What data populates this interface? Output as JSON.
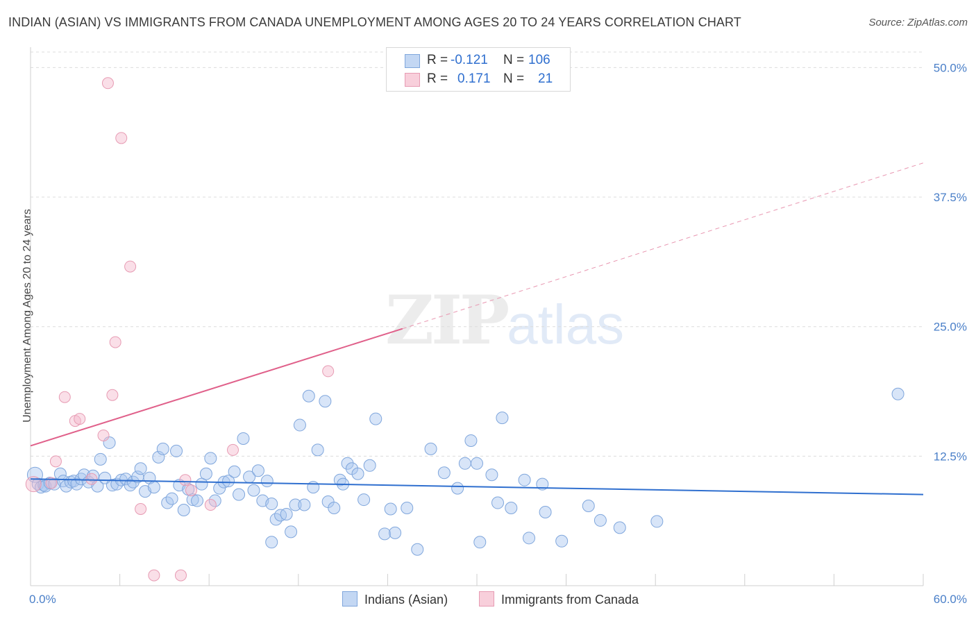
{
  "title": "INDIAN (ASIAN) VS IMMIGRANTS FROM CANADA UNEMPLOYMENT AMONG AGES 20 TO 24 YEARS CORRELATION CHART",
  "source": "Source: ZipAtlas.com",
  "watermark": {
    "zip": "ZIP",
    "atlas": "atlas"
  },
  "colors": {
    "blue": "#a8c6ef",
    "blue_line": "#2f6fcf",
    "pink": "#f4b8cb",
    "pink_line": "#e0608a"
  },
  "stats": {
    "rows": [
      {
        "r_label": "R =",
        "r": "-0.121",
        "n_label": "N =",
        "n": "106"
      },
      {
        "r_label": "R =",
        "r": "0.171",
        "n_label": "N =",
        "n": "21"
      }
    ]
  },
  "chart_data": {
    "type": "scatter",
    "ylabel": "Unemployment Among Ages 20 to 24 years",
    "x_ticks": [
      "0.0%",
      "60.0%"
    ],
    "y_ticks": [
      "12.5%",
      "25.0%",
      "37.5%",
      "50.0%"
    ],
    "xlim": [
      0,
      60
    ],
    "ylim": [
      0,
      51.5
    ],
    "grid": true,
    "legend_position": "bottom-center",
    "series": [
      {
        "name": "Indians (Asian)",
        "trend": {
          "x": [
            0,
            60
          ],
          "y": [
            10.3,
            8.8
          ],
          "dashed_extension": false
        },
        "points": [
          [
            0.3,
            10.7
          ],
          [
            0.5,
            9.8
          ],
          [
            0.7,
            9.5
          ],
          [
            0.9,
            9.7
          ],
          [
            1.0,
            9.6
          ],
          [
            1.3,
            9.9
          ],
          [
            1.6,
            9.8
          ],
          [
            2.0,
            10.8
          ],
          [
            2.2,
            10.1
          ],
          [
            2.4,
            9.6
          ],
          [
            2.7,
            10.0
          ],
          [
            2.9,
            10.1
          ],
          [
            3.1,
            9.8
          ],
          [
            3.4,
            10.3
          ],
          [
            3.6,
            10.7
          ],
          [
            3.9,
            10.0
          ],
          [
            4.2,
            10.6
          ],
          [
            4.5,
            9.6
          ],
          [
            4.7,
            12.2
          ],
          [
            5.0,
            10.4
          ],
          [
            5.3,
            13.8
          ],
          [
            5.5,
            9.7
          ],
          [
            5.8,
            9.8
          ],
          [
            6.1,
            10.2
          ],
          [
            6.4,
            10.3
          ],
          [
            6.7,
            9.7
          ],
          [
            6.9,
            10.0
          ],
          [
            7.2,
            10.5
          ],
          [
            7.4,
            11.3
          ],
          [
            7.7,
            9.1
          ],
          [
            8.0,
            10.4
          ],
          [
            8.3,
            9.5
          ],
          [
            8.6,
            12.4
          ],
          [
            8.9,
            13.2
          ],
          [
            9.2,
            8.0
          ],
          [
            9.5,
            8.4
          ],
          [
            9.8,
            13.0
          ],
          [
            10.0,
            9.7
          ],
          [
            10.3,
            7.3
          ],
          [
            10.6,
            9.3
          ],
          [
            10.9,
            8.3
          ],
          [
            11.2,
            8.2
          ],
          [
            11.5,
            9.8
          ],
          [
            11.8,
            10.8
          ],
          [
            12.1,
            12.3
          ],
          [
            12.4,
            8.2
          ],
          [
            12.7,
            9.4
          ],
          [
            13.0,
            10.0
          ],
          [
            13.3,
            10.1
          ],
          [
            13.7,
            11.0
          ],
          [
            14.0,
            8.8
          ],
          [
            14.3,
            14.2
          ],
          [
            14.7,
            10.5
          ],
          [
            15.0,
            9.2
          ],
          [
            15.3,
            11.1
          ],
          [
            15.6,
            8.2
          ],
          [
            15.9,
            10.1
          ],
          [
            16.2,
            7.9
          ],
          [
            16.5,
            6.4
          ],
          [
            16.8,
            6.8
          ],
          [
            17.2,
            6.9
          ],
          [
            17.5,
            5.2
          ],
          [
            17.8,
            7.8
          ],
          [
            18.1,
            15.5
          ],
          [
            18.4,
            7.8
          ],
          [
            18.7,
            18.3
          ],
          [
            19.0,
            9.5
          ],
          [
            19.3,
            13.1
          ],
          [
            19.8,
            17.8
          ],
          [
            20.0,
            8.1
          ],
          [
            20.4,
            7.5
          ],
          [
            20.8,
            10.2
          ],
          [
            21.0,
            9.8
          ],
          [
            21.3,
            11.8
          ],
          [
            21.6,
            11.3
          ],
          [
            22.0,
            10.8
          ],
          [
            22.4,
            8.3
          ],
          [
            22.8,
            11.6
          ],
          [
            23.2,
            16.1
          ],
          [
            23.8,
            5.0
          ],
          [
            24.2,
            7.4
          ],
          [
            24.5,
            5.1
          ],
          [
            25.3,
            7.5
          ],
          [
            26.0,
            3.5
          ],
          [
            26.9,
            13.2
          ],
          [
            27.8,
            10.9
          ],
          [
            28.7,
            9.4
          ],
          [
            29.2,
            11.8
          ],
          [
            29.6,
            14.0
          ],
          [
            30.0,
            11.8
          ],
          [
            30.2,
            4.2
          ],
          [
            31.0,
            10.7
          ],
          [
            31.4,
            8.0
          ],
          [
            31.7,
            16.2
          ],
          [
            32.3,
            7.5
          ],
          [
            33.2,
            10.2
          ],
          [
            33.5,
            4.6
          ],
          [
            34.4,
            9.8
          ],
          [
            34.6,
            7.1
          ],
          [
            35.7,
            4.3
          ],
          [
            37.5,
            7.7
          ],
          [
            38.3,
            6.3
          ],
          [
            39.6,
            5.6
          ],
          [
            42.1,
            6.2
          ],
          [
            58.3,
            18.5
          ],
          [
            16.2,
            4.2
          ]
        ]
      },
      {
        "name": "Immigrants from Canada",
        "trend": {
          "x": [
            0,
            25.0
          ],
          "y": [
            13.5,
            24.8
          ],
          "dashed_to": [
            60,
            40.8
          ]
        },
        "points": [
          [
            0.2,
            9.8
          ],
          [
            1.4,
            9.9
          ],
          [
            1.7,
            12.0
          ],
          [
            2.3,
            18.2
          ],
          [
            3.0,
            15.9
          ],
          [
            3.3,
            16.1
          ],
          [
            4.1,
            10.3
          ],
          [
            4.9,
            14.5
          ],
          [
            5.2,
            48.5
          ],
          [
            5.5,
            18.4
          ],
          [
            5.7,
            23.5
          ],
          [
            6.1,
            43.2
          ],
          [
            6.7,
            30.8
          ],
          [
            7.4,
            7.4
          ],
          [
            8.3,
            1.0
          ],
          [
            10.1,
            1.0
          ],
          [
            10.4,
            10.2
          ],
          [
            10.8,
            9.2
          ],
          [
            12.1,
            7.8
          ],
          [
            13.6,
            13.1
          ],
          [
            20.0,
            20.7
          ]
        ]
      }
    ]
  },
  "legend": [
    {
      "label": "Indians (Asian)"
    },
    {
      "label": "Immigrants from Canada"
    }
  ]
}
